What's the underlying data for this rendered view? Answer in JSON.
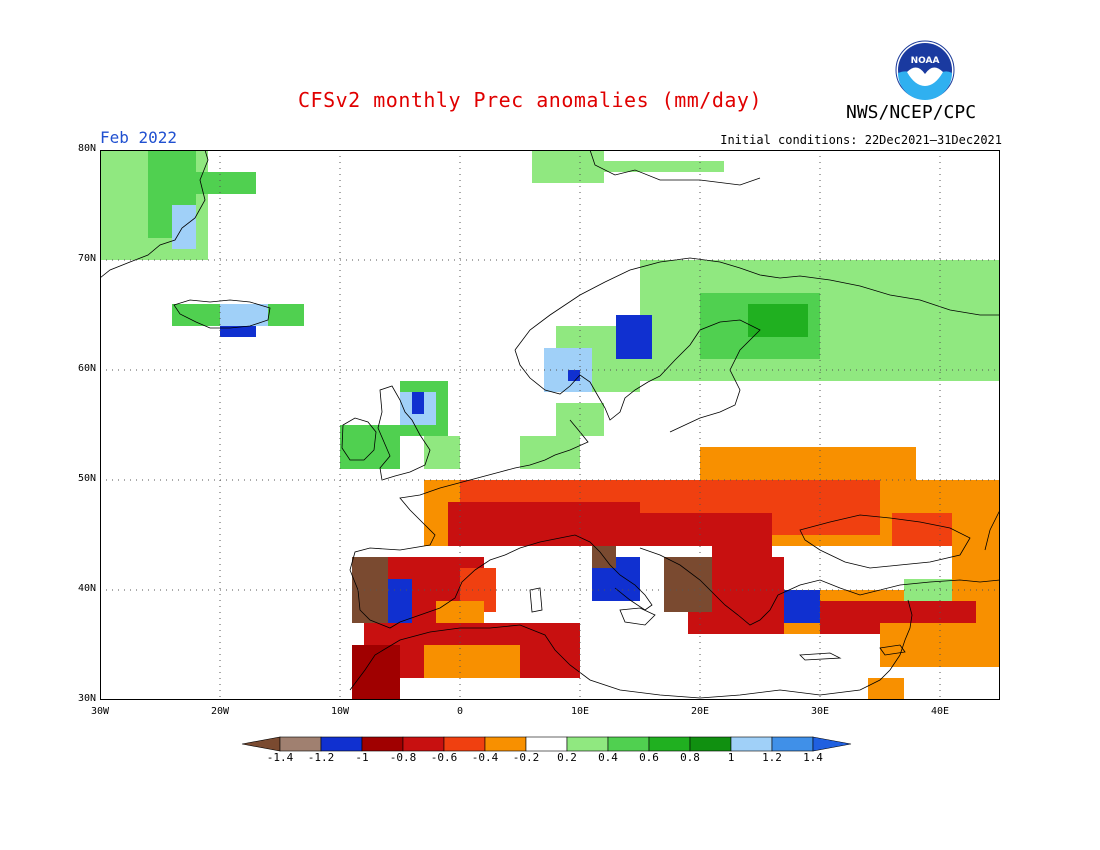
{
  "header": {
    "title": "CFSv2 monthly Prec anomalies (mm/day)",
    "agency": "NWS/NCEP/CPC",
    "month": "Feb 2022",
    "initial_conditions": "Initial conditions: 22Dec2021–31Dec2021",
    "logo_text": "NOAA"
  },
  "map": {
    "lon_range": [
      -30,
      45
    ],
    "lat_range": [
      30,
      80
    ],
    "lon_ticks": [
      "30W",
      "20W",
      "10W",
      "0",
      "10E",
      "20E",
      "30E",
      "40E"
    ],
    "lat_ticks": [
      "80N",
      "70N",
      "60N",
      "50N",
      "40N",
      "30N"
    ],
    "grid": "dotted"
  },
  "colorbar": {
    "ticks": [
      "-1.4",
      "-1.2",
      "-1",
      "-0.8",
      "-0.6",
      "-0.4",
      "-0.2",
      "0.2",
      "0.4",
      "0.6",
      "0.8",
      "1",
      "1.2",
      "1.4"
    ],
    "colors": [
      "#7a4a30",
      "#a08070",
      "#1030d0",
      "#a00000",
      "#c81010",
      "#f04010",
      "#f89000",
      "#ffffff",
      "#90e880",
      "#50d050",
      "#20b020",
      "#109010",
      "#a0d0f8",
      "#4090e8",
      "#2060e0"
    ]
  },
  "anomaly_regions": [
    {
      "lon": [
        -30,
        -21
      ],
      "lat": [
        70,
        80
      ],
      "class": "0.4"
    },
    {
      "lon": [
        -26,
        -22
      ],
      "lat": [
        72,
        80
      ],
      "class": "0.6"
    },
    {
      "lon": [
        -24,
        -22
      ],
      "lat": [
        71,
        75
      ],
      "class": "1.2"
    },
    {
      "lon": [
        -22,
        -17
      ],
      "lat": [
        76,
        78
      ],
      "class": "0.6"
    },
    {
      "lon": [
        -24,
        -13
      ],
      "lat": [
        64,
        66
      ],
      "class": "0.6"
    },
    {
      "lon": [
        -20,
        -17
      ],
      "lat": [
        63,
        65
      ],
      "class": "-1.2"
    },
    {
      "lon": [
        -20,
        -16
      ],
      "lat": [
        64,
        66
      ],
      "class": "1.2"
    },
    {
      "lon": [
        6,
        12
      ],
      "lat": [
        77,
        80
      ],
      "class": "0.4"
    },
    {
      "lon": [
        12,
        22
      ],
      "lat": [
        78,
        79
      ],
      "class": "0.4"
    },
    {
      "lon": [
        15,
        45
      ],
      "lat": [
        59,
        70
      ],
      "class": "0.4"
    },
    {
      "lon": [
        20,
        30
      ],
      "lat": [
        61,
        67
      ],
      "class": "0.6"
    },
    {
      "lon": [
        24,
        29
      ],
      "lat": [
        63,
        66
      ],
      "class": "0.8"
    },
    {
      "lon": [
        8,
        15
      ],
      "lat": [
        58,
        64
      ],
      "class": "0.4"
    },
    {
      "lon": [
        13,
        16
      ],
      "lat": [
        61,
        65
      ],
      "class": "-1.2"
    },
    {
      "lon": [
        7,
        11
      ],
      "lat": [
        58,
        62
      ],
      "class": "1.2"
    },
    {
      "lon": [
        9,
        10
      ],
      "lat": [
        59,
        60
      ],
      "class": "-1.2"
    },
    {
      "lon": [
        -10,
        -5
      ],
      "lat": [
        51,
        55
      ],
      "class": "0.6"
    },
    {
      "lon": [
        -5,
        -1
      ],
      "lat": [
        54,
        59
      ],
      "class": "0.6"
    },
    {
      "lon": [
        -5,
        -2
      ],
      "lat": [
        55,
        58
      ],
      "class": "1.2"
    },
    {
      "lon": [
        -4,
        -3
      ],
      "lat": [
        56,
        58
      ],
      "class": "-1.2"
    },
    {
      "lon": [
        -3,
        0
      ],
      "lat": [
        51,
        54
      ],
      "class": "0.4"
    },
    {
      "lon": [
        8,
        12
      ],
      "lat": [
        54,
        57
      ],
      "class": "0.4"
    },
    {
      "lon": [
        5,
        10
      ],
      "lat": [
        51,
        54
      ],
      "class": "0.4"
    },
    {
      "lon": [
        -3,
        45
      ],
      "lat": [
        44,
        50
      ],
      "class": "-0.4"
    },
    {
      "lon": [
        20,
        38
      ],
      "lat": [
        50,
        53
      ],
      "class": "-0.4"
    },
    {
      "lon": [
        0,
        35
      ],
      "lat": [
        45,
        50
      ],
      "class": "-0.6"
    },
    {
      "lon": [
        -1,
        22
      ],
      "lat": [
        44,
        48
      ],
      "class": "-0.8"
    },
    {
      "lon": [
        15,
        32
      ],
      "lat": [
        47,
        50
      ],
      "class": "-0.6"
    },
    {
      "lon": [
        5,
        13
      ],
      "lat": [
        44,
        47
      ],
      "class": "-0.8"
    },
    {
      "lon": [
        21,
        26
      ],
      "lat": [
        43,
        47
      ],
      "class": "-0.8"
    },
    {
      "lon": [
        -9,
        2
      ],
      "lat": [
        37,
        43
      ],
      "class": "-0.8"
    },
    {
      "lon": [
        -9,
        -6
      ],
      "lat": [
        37,
        43
      ],
      "class": "-1.4"
    },
    {
      "lon": [
        -6,
        -4
      ],
      "lat": [
        37,
        41
      ],
      "class": "-1.2"
    },
    {
      "lon": [
        0,
        3
      ],
      "lat": [
        38,
        42
      ],
      "class": "-0.6"
    },
    {
      "lon": [
        -2,
        2
      ],
      "lat": [
        36,
        39
      ],
      "class": "-0.4"
    },
    {
      "lon": [
        -8,
        10
      ],
      "lat": [
        32,
        37
      ],
      "class": "-0.8"
    },
    {
      "lon": [
        -3,
        5
      ],
      "lat": [
        32,
        35
      ],
      "class": "-0.4"
    },
    {
      "lon": [
        -9,
        -5
      ],
      "lat": [
        30,
        35
      ],
      "class": "-1"
    },
    {
      "lon": [
        19,
        27
      ],
      "lat": [
        36,
        43
      ],
      "class": "-0.8"
    },
    {
      "lon": [
        17,
        21
      ],
      "lat": [
        38,
        43
      ],
      "class": "-1.4"
    },
    {
      "lon": [
        11,
        15
      ],
      "lat": [
        39,
        43
      ],
      "class": "-1.2"
    },
    {
      "lon": [
        11,
        13
      ],
      "lat": [
        42,
        44
      ],
      "class": "-1.4"
    },
    {
      "lon": [
        27,
        45
      ],
      "lat": [
        36,
        40
      ],
      "class": "-0.4"
    },
    {
      "lon": [
        30,
        43
      ],
      "lat": [
        36,
        39
      ],
      "class": "-0.8"
    },
    {
      "lon": [
        27,
        30
      ],
      "lat": [
        37,
        40
      ],
      "class": "-1.2"
    },
    {
      "lon": [
        35,
        45
      ],
      "lat": [
        33,
        37
      ],
      "class": "-0.4"
    },
    {
      "lon": [
        34,
        37
      ],
      "lat": [
        30,
        32
      ],
      "class": "-0.4"
    },
    {
      "lon": [
        37,
        41
      ],
      "lat": [
        39,
        41
      ],
      "class": "0.4"
    },
    {
      "lon": [
        41,
        45
      ],
      "lat": [
        40,
        47
      ],
      "class": "-0.4"
    },
    {
      "lon": [
        36,
        41
      ],
      "lat": [
        44,
        47
      ],
      "class": "-0.6"
    }
  ]
}
